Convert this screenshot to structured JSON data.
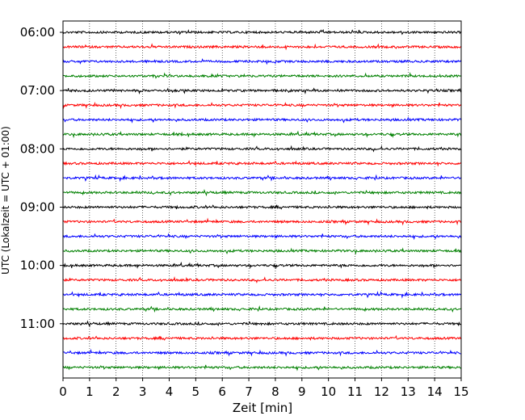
{
  "chart_data": {
    "type": "line",
    "title": "",
    "xlabel": "Zeit  [min]",
    "ylabel": "UTC (Lokalzeit = UTC + 01:00)",
    "xlim": [
      0,
      15
    ],
    "x_ticks": [
      "0",
      "1",
      "2",
      "3",
      "4",
      "5",
      "6",
      "7",
      "8",
      "9",
      "10",
      "11",
      "12",
      "13",
      "14",
      "15"
    ],
    "y_tick_labels": [
      "06:00",
      "07:00",
      "08:00",
      "09:00",
      "10:00",
      "11:00"
    ],
    "grid": "vertical dotted",
    "trace_colors": [
      "#000000",
      "#ff0000",
      "#0000ff",
      "#008000"
    ],
    "trace_count": 24,
    "trace_start_time": "06:00",
    "trace_interval_minutes": 15
  }
}
